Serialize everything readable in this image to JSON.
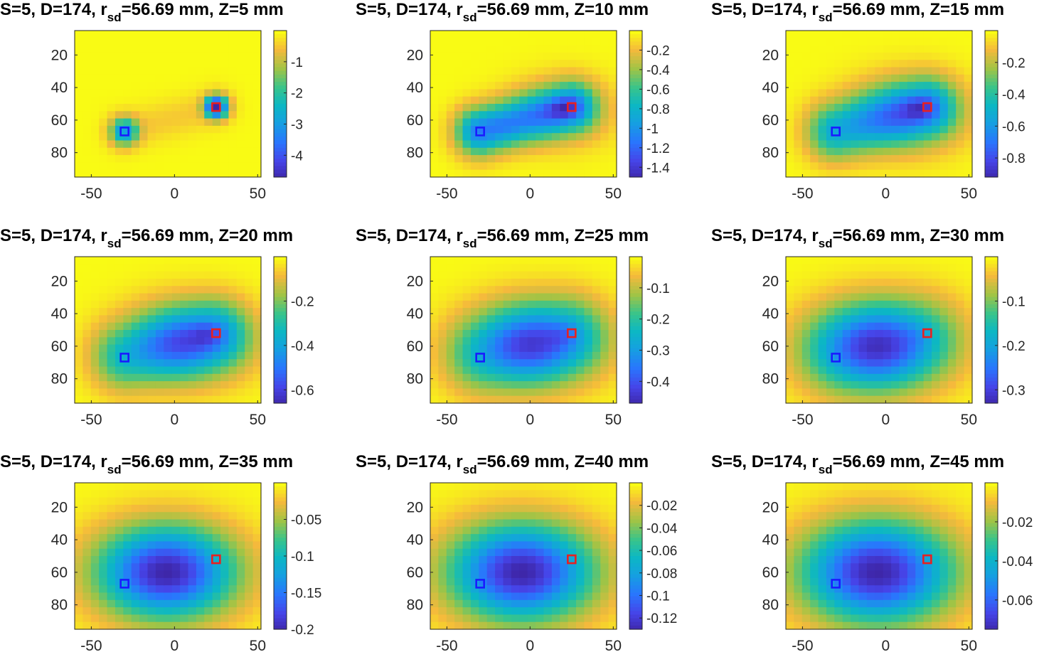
{
  "figure": {
    "panel_count": 9,
    "colormap": "parula"
  },
  "chart_data": [
    {
      "type": "heatmap",
      "title": {
        "prefix": "S=5, D=174, r",
        "sub": "sd",
        "suffix": "=56.69 mm, Z=5 mm"
      },
      "Z_mm": 5,
      "rsd_mm": 56.69,
      "S": 5,
      "D": 174,
      "x_range": [
        -60,
        52
      ],
      "y_range": [
        5,
        95
      ],
      "x_ticks": [
        -50,
        0,
        50
      ],
      "y_ticks": [
        20,
        40,
        60,
        80
      ],
      "colorbar": {
        "min": -4.7,
        "max": 0,
        "ticks": [
          -1,
          -2,
          -3,
          -4
        ]
      },
      "source_marker": {
        "x": -30,
        "y": 67,
        "color": "#1a1aff"
      },
      "detector_marker": {
        "x": 25,
        "y": 52,
        "color": "#e82020"
      }
    },
    {
      "type": "heatmap",
      "title": {
        "prefix": "S=5, D=174, r",
        "sub": "sd",
        "suffix": "=56.69 mm, Z=10 mm"
      },
      "Z_mm": 10,
      "rsd_mm": 56.69,
      "S": 5,
      "D": 174,
      "x_range": [
        -60,
        52
      ],
      "y_range": [
        5,
        95
      ],
      "x_ticks": [
        -50,
        0,
        50
      ],
      "y_ticks": [
        20,
        40,
        60,
        80
      ],
      "colorbar": {
        "min": -1.5,
        "max": 0,
        "ticks": [
          -0.2,
          -0.4,
          -0.6,
          -0.8,
          -1,
          -1.2,
          -1.4
        ]
      },
      "source_marker": {
        "x": -30,
        "y": 67,
        "color": "#1a1aff"
      },
      "detector_marker": {
        "x": 25,
        "y": 52,
        "color": "#e82020"
      }
    },
    {
      "type": "heatmap",
      "title": {
        "prefix": "S=5, D=174, r",
        "sub": "sd",
        "suffix": "=56.69 mm, Z=15 mm"
      },
      "Z_mm": 15,
      "rsd_mm": 56.69,
      "S": 5,
      "D": 174,
      "x_range": [
        -60,
        52
      ],
      "y_range": [
        5,
        95
      ],
      "x_ticks": [
        -50,
        0,
        50
      ],
      "y_ticks": [
        20,
        40,
        60,
        80
      ],
      "colorbar": {
        "min": -0.92,
        "max": 0,
        "ticks": [
          -0.2,
          -0.4,
          -0.6,
          -0.8
        ]
      },
      "source_marker": {
        "x": -30,
        "y": 67,
        "color": "#1a1aff"
      },
      "detector_marker": {
        "x": 25,
        "y": 52,
        "color": "#e82020"
      }
    },
    {
      "type": "heatmap",
      "title": {
        "prefix": "S=5, D=174, r",
        "sub": "sd",
        "suffix": "=56.69 mm, Z=20 mm"
      },
      "Z_mm": 20,
      "rsd_mm": 56.69,
      "S": 5,
      "D": 174,
      "x_range": [
        -60,
        52
      ],
      "y_range": [
        5,
        95
      ],
      "x_ticks": [
        -50,
        0,
        50
      ],
      "y_ticks": [
        20,
        40,
        60,
        80
      ],
      "colorbar": {
        "min": -0.66,
        "max": 0,
        "ticks": [
          -0.2,
          -0.4,
          -0.6
        ]
      },
      "source_marker": {
        "x": -30,
        "y": 67,
        "color": "#1a1aff"
      },
      "detector_marker": {
        "x": 25,
        "y": 52,
        "color": "#e82020"
      }
    },
    {
      "type": "heatmap",
      "title": {
        "prefix": "S=5, D=174, r",
        "sub": "sd",
        "suffix": "=56.69 mm, Z=25 mm"
      },
      "Z_mm": 25,
      "rsd_mm": 56.69,
      "S": 5,
      "D": 174,
      "x_range": [
        -60,
        52
      ],
      "y_range": [
        5,
        95
      ],
      "x_ticks": [
        -50,
        0,
        50
      ],
      "y_ticks": [
        20,
        40,
        60,
        80
      ],
      "colorbar": {
        "min": -0.47,
        "max": 0,
        "ticks": [
          -0.1,
          -0.2,
          -0.3,
          -0.4
        ]
      },
      "source_marker": {
        "x": -30,
        "y": 67,
        "color": "#1a1aff"
      },
      "detector_marker": {
        "x": 25,
        "y": 52,
        "color": "#e82020"
      }
    },
    {
      "type": "heatmap",
      "title": {
        "prefix": "S=5, D=174, r",
        "sub": "sd",
        "suffix": "=56.69 mm, Z=30 mm"
      },
      "Z_mm": 30,
      "rsd_mm": 56.69,
      "S": 5,
      "D": 174,
      "x_range": [
        -60,
        52
      ],
      "y_range": [
        5,
        95
      ],
      "x_ticks": [
        -50,
        0,
        50
      ],
      "y_ticks": [
        20,
        40,
        60,
        80
      ],
      "colorbar": {
        "min": -0.33,
        "max": 0,
        "ticks": [
          -0.1,
          -0.2,
          -0.3
        ]
      },
      "source_marker": {
        "x": -30,
        "y": 67,
        "color": "#1a1aff"
      },
      "detector_marker": {
        "x": 25,
        "y": 52,
        "color": "#e82020"
      }
    },
    {
      "type": "heatmap",
      "title": {
        "prefix": "S=5, D=174, r",
        "sub": "sd",
        "suffix": "=56.69 mm, Z=35 mm"
      },
      "Z_mm": 35,
      "rsd_mm": 56.69,
      "S": 5,
      "D": 174,
      "x_range": [
        -60,
        52
      ],
      "y_range": [
        5,
        95
      ],
      "x_ticks": [
        -50,
        0,
        50
      ],
      "y_ticks": [
        20,
        40,
        60,
        80
      ],
      "colorbar": {
        "min": -0.2,
        "max": 0,
        "ticks": [
          -0.05,
          -0.1,
          -0.15,
          -0.2
        ]
      },
      "source_marker": {
        "x": -30,
        "y": 67,
        "color": "#1a1aff"
      },
      "detector_marker": {
        "x": 25,
        "y": 52,
        "color": "#e82020"
      }
    },
    {
      "type": "heatmap",
      "title": {
        "prefix": "S=5, D=174, r",
        "sub": "sd",
        "suffix": "=56.69 mm, Z=40 mm"
      },
      "Z_mm": 40,
      "rsd_mm": 56.69,
      "S": 5,
      "D": 174,
      "x_range": [
        -60,
        52
      ],
      "y_range": [
        5,
        95
      ],
      "x_ticks": [
        -50,
        0,
        50
      ],
      "y_ticks": [
        20,
        40,
        60,
        80
      ],
      "colorbar": {
        "min": -0.13,
        "max": 0,
        "ticks": [
          -0.02,
          -0.04,
          -0.06,
          -0.08,
          -0.1,
          -0.12
        ]
      },
      "source_marker": {
        "x": -30,
        "y": 67,
        "color": "#1a1aff"
      },
      "detector_marker": {
        "x": 25,
        "y": 52,
        "color": "#e82020"
      }
    },
    {
      "type": "heatmap",
      "title": {
        "prefix": "S=5, D=174, r",
        "sub": "sd",
        "suffix": "=56.69 mm, Z=45 mm"
      },
      "Z_mm": 45,
      "rsd_mm": 56.69,
      "S": 5,
      "D": 174,
      "x_range": [
        -60,
        52
      ],
      "y_range": [
        5,
        95
      ],
      "x_ticks": [
        -50,
        0,
        50
      ],
      "y_ticks": [
        20,
        40,
        60,
        80
      ],
      "colorbar": {
        "min": -0.075,
        "max": 0,
        "ticks": [
          -0.02,
          -0.04,
          -0.06
        ]
      },
      "source_marker": {
        "x": -30,
        "y": 67,
        "color": "#1a1aff"
      },
      "detector_marker": {
        "x": 25,
        "y": 52,
        "color": "#e82020"
      }
    }
  ]
}
